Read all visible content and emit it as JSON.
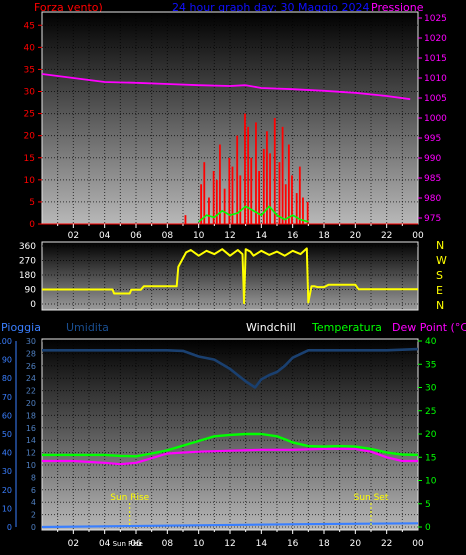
{
  "header": {
    "left_title": "Forza vento)",
    "center_title": "24 hour graph day: 30 Maggio 2024",
    "right_title": "Pressione"
  },
  "hour_labels": [
    "02",
    "04",
    "06",
    "08",
    "10",
    "12",
    "14",
    "16",
    "18",
    "20",
    "22",
    "00"
  ],
  "sun_rise_tick": "Sun Rise",
  "colors": {
    "wind": "#ff0000",
    "gust": "#00ff00",
    "pressure": "#ff00ff",
    "direction": "#ffff00",
    "rain": "#3a7fff",
    "humidity": "#1a4070",
    "windchill": "#ffffff",
    "temperature": "#00ff00",
    "dewpoint": "#ff00ff",
    "sun": "#ffff00"
  },
  "chart_data": [
    {
      "type": "line+bar",
      "name": "wind-pressure",
      "left_axis": {
        "label": "Forza vento)",
        "ticks": [
          0,
          5,
          10,
          15,
          20,
          25,
          30,
          35,
          40,
          45
        ],
        "range": [
          0,
          48
        ]
      },
      "right_axis": {
        "label": "Pressione",
        "ticks": [
          975,
          980,
          985,
          990,
          995,
          1000,
          1005,
          1010,
          1015,
          1020,
          1025
        ],
        "range": [
          973.5,
          1026.5
        ]
      },
      "pressure": {
        "x": [
          0,
          2,
          4,
          6,
          8,
          10,
          12,
          13,
          14,
          16,
          18,
          20,
          22,
          23.5
        ],
        "y": [
          1011,
          1010,
          1009,
          1008.8,
          1008.5,
          1008.2,
          1008,
          1008.2,
          1007.5,
          1007.2,
          1006.8,
          1006.3,
          1005.5,
          1004.7
        ]
      },
      "gust": {
        "x": [
          10,
          10.5,
          11,
          11.5,
          12,
          12.5,
          13,
          13.5,
          14,
          14.5,
          15,
          15.5,
          16,
          16.5,
          17
        ],
        "y": [
          0.5,
          2,
          1.5,
          3,
          2,
          2.5,
          4,
          3,
          2,
          4,
          2,
          1,
          2,
          1,
          0.5
        ]
      },
      "wind_bars": {
        "x": [
          9.1,
          10.1,
          10.3,
          10.6,
          10.9,
          11.1,
          11.3,
          11.6,
          11.9,
          12.1,
          12.4,
          12.6,
          12.9,
          13.1,
          13.3,
          13.6,
          13.8,
          14.1,
          14.3,
          14.5,
          14.8,
          15.1,
          15.3,
          15.5,
          15.7,
          15.9,
          16.2,
          16.4,
          16.6,
          16.9
        ],
        "y": [
          2,
          9,
          14,
          6,
          12,
          10,
          18,
          8,
          15,
          13,
          20,
          11,
          25,
          22,
          15,
          23,
          12,
          17,
          21,
          16,
          24,
          14,
          22,
          9,
          18,
          11,
          7,
          13,
          6,
          5
        ]
      }
    },
    {
      "type": "line",
      "name": "wind-direction",
      "left_axis": {
        "ticks": [
          0,
          90,
          180,
          270,
          360
        ],
        "range": [
          0,
          360
        ]
      },
      "right_axis": {
        "ticks": [
          "N",
          "W",
          "S",
          "E",
          "N"
        ]
      },
      "direction": {
        "x": [
          0,
          4.5,
          4.6,
          5.6,
          5.7,
          6.3,
          6.5,
          8.6,
          8.7,
          9.2,
          9.5,
          10,
          10.5,
          11,
          11.5,
          12,
          12.5,
          12.8,
          12.9,
          13,
          13.3,
          13.5,
          14,
          14.5,
          15,
          15.5,
          16,
          16.5,
          16.9,
          17,
          17.2,
          17.4,
          17.6,
          18,
          18.3,
          20,
          20.2,
          20.5,
          24
        ],
        "y": [
          90,
          90,
          65,
          65,
          88,
          88,
          110,
          110,
          230,
          320,
          335,
          300,
          330,
          310,
          340,
          300,
          335,
          310,
          5,
          340,
          325,
          300,
          330,
          305,
          325,
          300,
          330,
          310,
          345,
          10,
          110,
          110,
          105,
          105,
          120,
          120,
          92,
          92,
          92
        ]
      }
    },
    {
      "type": "line",
      "name": "temperature-humidity",
      "left_axis": {
        "label": "Pioggia",
        "ticks": [
          0,
          10,
          20,
          30,
          40,
          50,
          60,
          70,
          80,
          90,
          100
        ],
        "range": [
          0,
          100
        ]
      },
      "left_axis_2": {
        "label": "Umidita",
        "ticks": [
          0,
          2,
          4,
          6,
          8,
          10,
          12,
          14,
          16,
          18,
          20,
          22,
          24,
          26,
          28,
          30
        ],
        "range": [
          0,
          30
        ]
      },
      "legend": [
        "Windchill",
        "Temperatura",
        "Dew Point (°C)"
      ],
      "right_axis": {
        "ticks": [
          0,
          5,
          10,
          15,
          20,
          25,
          30,
          35,
          40
        ],
        "range": [
          0,
          40
        ]
      },
      "humidity": {
        "x": [
          0,
          2,
          4,
          6,
          8,
          9,
          10,
          11,
          12,
          12.5,
          13,
          13.3,
          13.6,
          14,
          14.5,
          15,
          15.5,
          16,
          17,
          18,
          20,
          22,
          24
        ],
        "y": [
          28.5,
          28.5,
          28.5,
          28.5,
          28.5,
          28.4,
          27.5,
          27,
          25.5,
          24.5,
          23.5,
          23,
          22.5,
          23.8,
          24.5,
          25,
          26,
          27.3,
          28.5,
          28.5,
          28.5,
          28.5,
          28.7
        ]
      },
      "temperature": {
        "x": [
          0,
          2,
          4,
          5,
          6,
          7,
          8,
          9,
          10,
          11,
          12,
          13,
          14,
          15,
          16,
          17,
          18,
          19,
          20,
          21,
          22,
          23,
          24
        ],
        "y": [
          15.5,
          15.5,
          15.5,
          15.3,
          15.2,
          15.8,
          16.5,
          17.5,
          18.5,
          19.5,
          19.8,
          20,
          20,
          19.5,
          18.2,
          17.4,
          17.3,
          17.4,
          17.3,
          16.8,
          16,
          15.6,
          15.5
        ]
      },
      "dewpoint": {
        "x": [
          0,
          2,
          4,
          5,
          6,
          7,
          8,
          10,
          12,
          14,
          16,
          18,
          20,
          21,
          22,
          23,
          24
        ],
        "y": [
          14.2,
          14.2,
          13.8,
          13.5,
          13.8,
          14.8,
          15.8,
          16.2,
          16.4,
          16.6,
          16.6,
          16.8,
          16.8,
          16.2,
          15,
          14.2,
          14.2
        ]
      },
      "rain": {
        "x": [
          0,
          16.5,
          24
        ],
        "y": [
          0,
          1.5,
          2
        ]
      },
      "sun_rise": {
        "x": 5.6,
        "label": "Sun Rise"
      },
      "sun_set": {
        "x": 21.0,
        "label": "Sun Set"
      }
    }
  ]
}
